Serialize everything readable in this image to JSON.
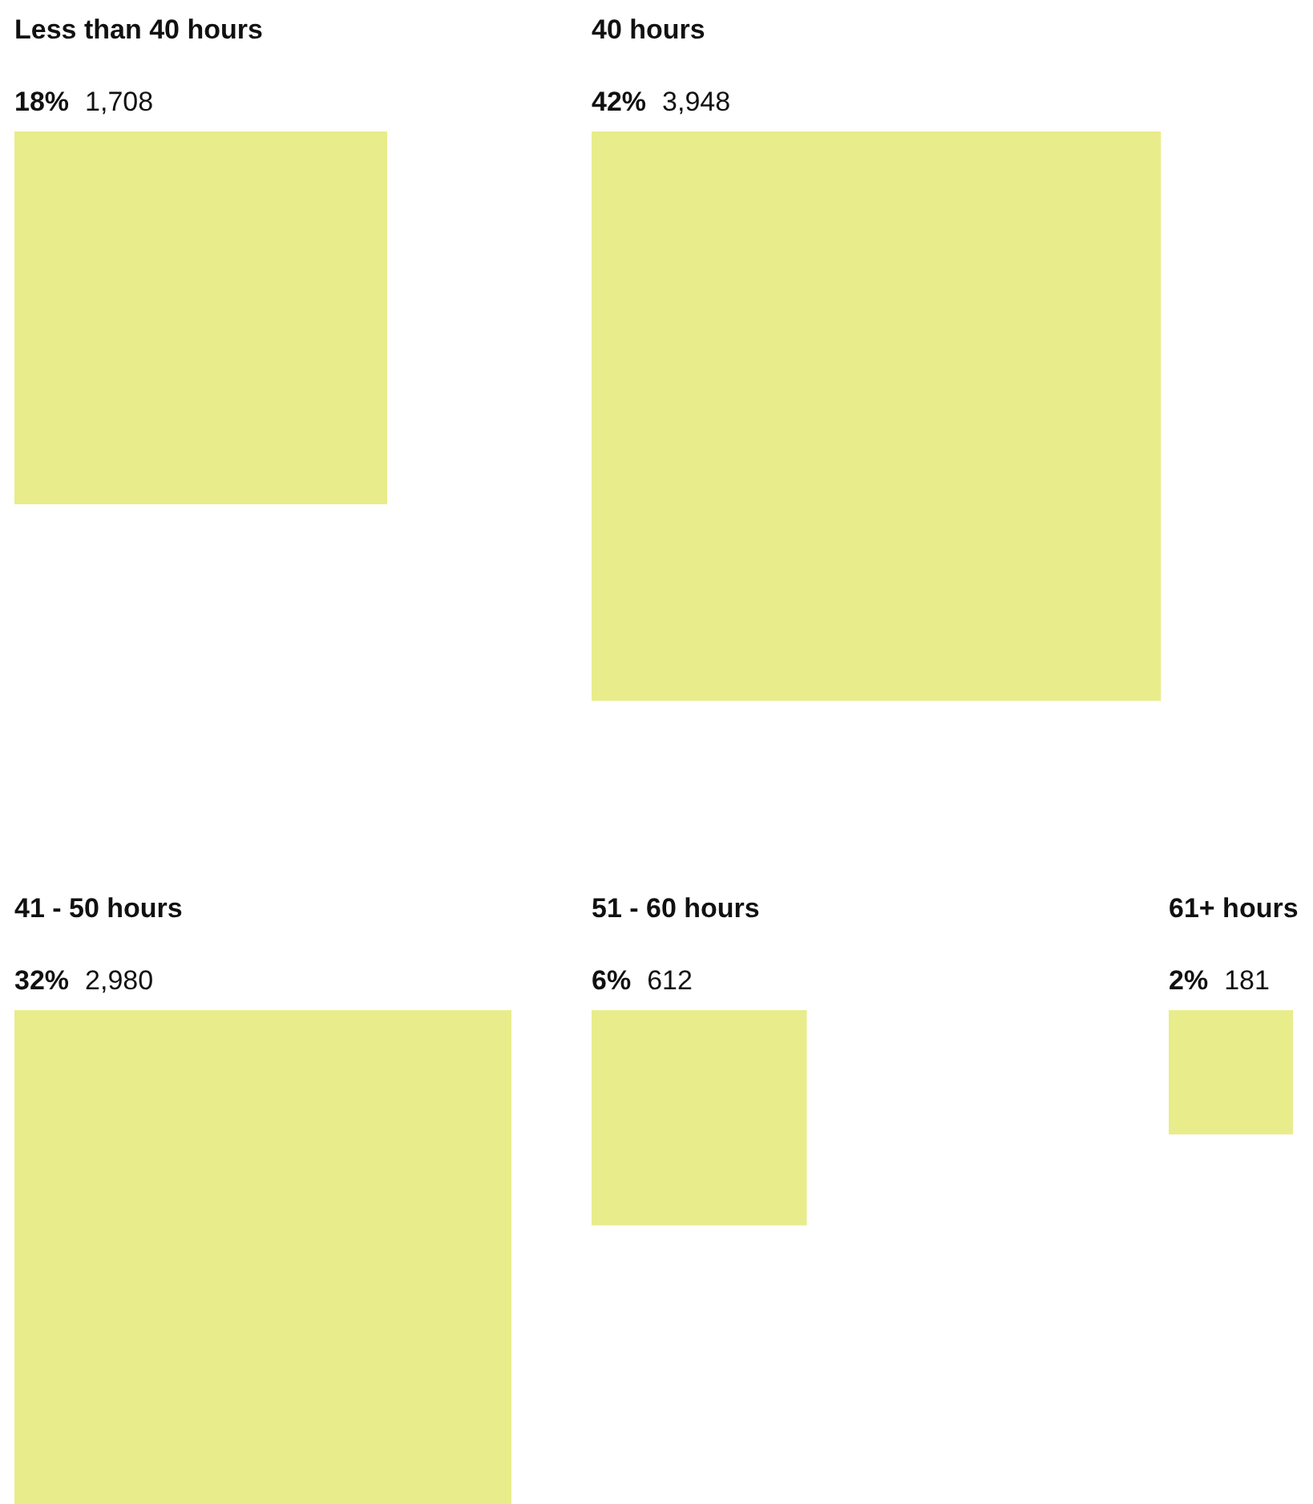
{
  "chart_data": {
    "type": "other",
    "categories": [
      "Less than 40 hours",
      "40 hours",
      "41 - 50 hours",
      "51 - 60 hours",
      "61+ hours"
    ],
    "values": [
      18,
      42,
      32,
      6,
      2
    ],
    "value_labels": [
      "18%",
      "42%",
      "32%",
      "6%",
      "2%"
    ],
    "annotations": [
      "1,708",
      "3,948",
      "2,980",
      "612",
      "181"
    ],
    "color": "#e9ec8b"
  }
}
